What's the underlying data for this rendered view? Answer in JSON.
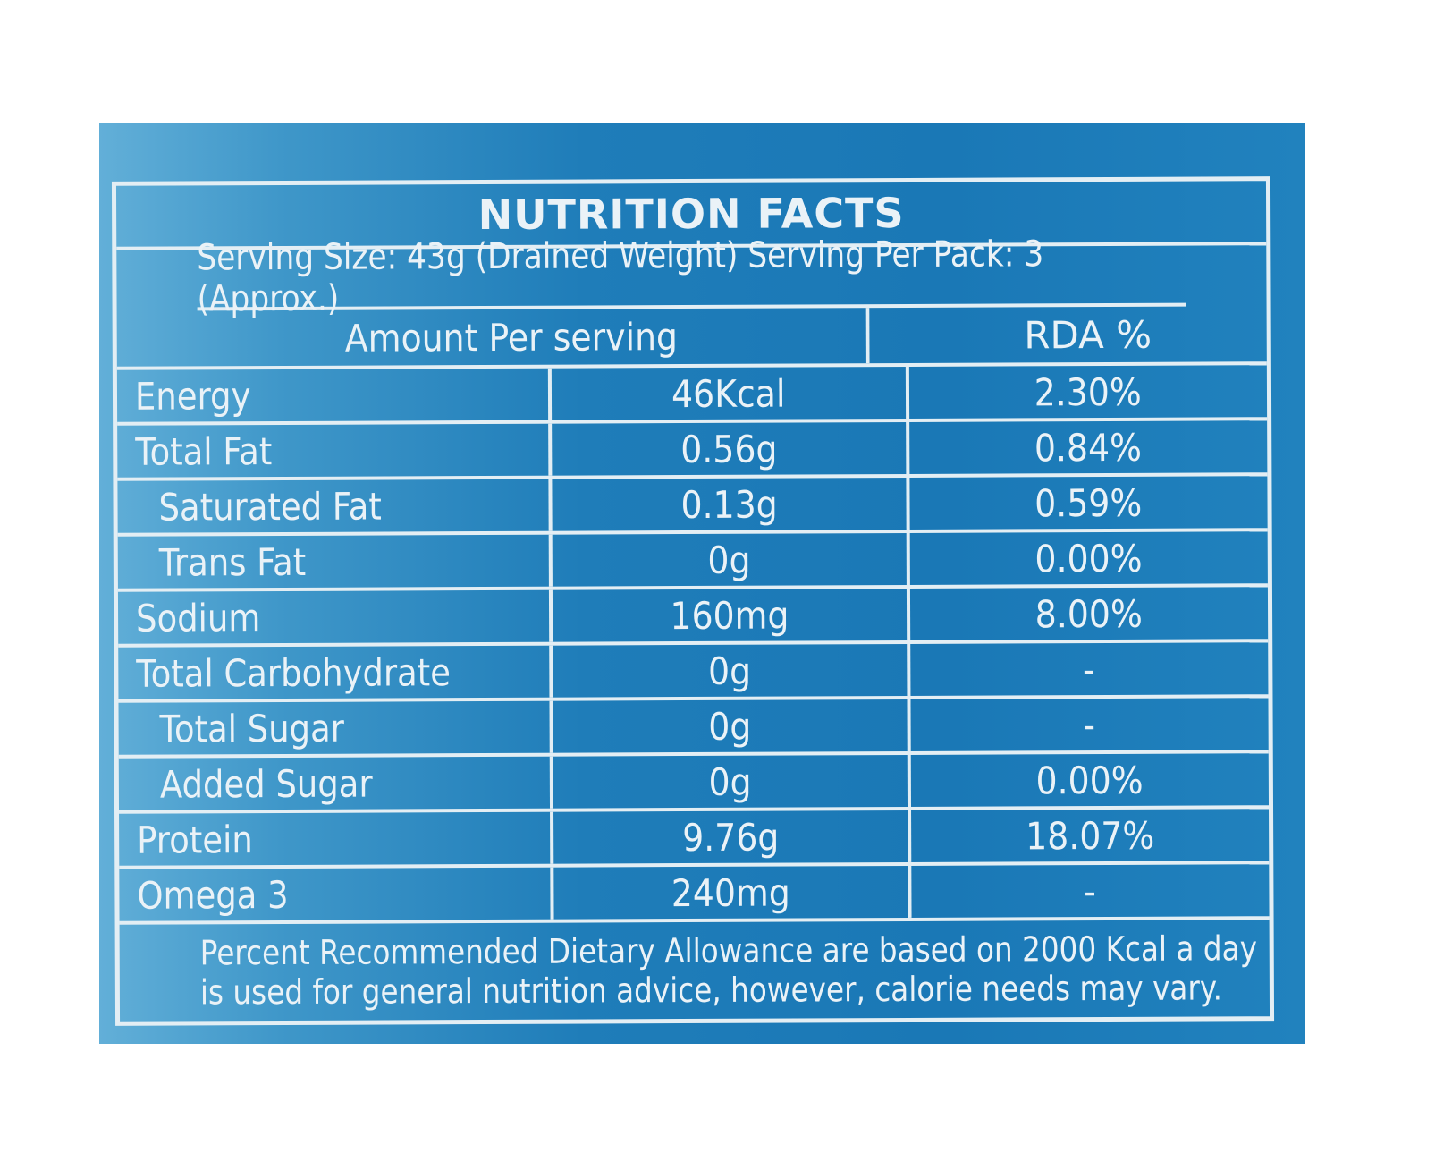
{
  "label": {
    "title": "NUTRITION FACTS",
    "serving_line": "Serving Size: 43g (Drained Weight) Serving Per Pack: 3 (Approx.)",
    "header": {
      "amount": "Amount Per serving",
      "rda": "RDA %"
    },
    "rows": [
      {
        "name": "Energy",
        "amount": "46Kcal",
        "rda": "2.30%",
        "indent": false
      },
      {
        "name": "Total Fat",
        "amount": "0.56g",
        "rda": "0.84%",
        "indent": false
      },
      {
        "name": "Saturated Fat",
        "amount": "0.13g",
        "rda": "0.59%",
        "indent": true
      },
      {
        "name": "Trans Fat",
        "amount": "0g",
        "rda": "0.00%",
        "indent": true
      },
      {
        "name": "Sodium",
        "amount": "160mg",
        "rda": "8.00%",
        "indent": false
      },
      {
        "name": "Total Carbohydrate",
        "amount": "0g",
        "rda": "-",
        "indent": false
      },
      {
        "name": "Total Sugar",
        "amount": "0g",
        "rda": "-",
        "indent": true
      },
      {
        "name": "Added Sugar",
        "amount": "0g",
        "rda": "0.00%",
        "indent": true
      },
      {
        "name": "Protein",
        "amount": "9.76g",
        "rda": "18.07%",
        "indent": false
      },
      {
        "name": "Omega 3",
        "amount": "240mg",
        "rda": "-",
        "indent": false
      }
    ],
    "footnote": [
      "Percent Recommended Dietary Allowance are based on 2000 Kcal a day",
      "is used for general nutrition advice, however, calorie needs may vary."
    ]
  },
  "colors": {
    "panel": "#1a78b6",
    "panel_light": "#62afd8",
    "lines": "#e3eef4",
    "text": "#eaf2f7"
  }
}
